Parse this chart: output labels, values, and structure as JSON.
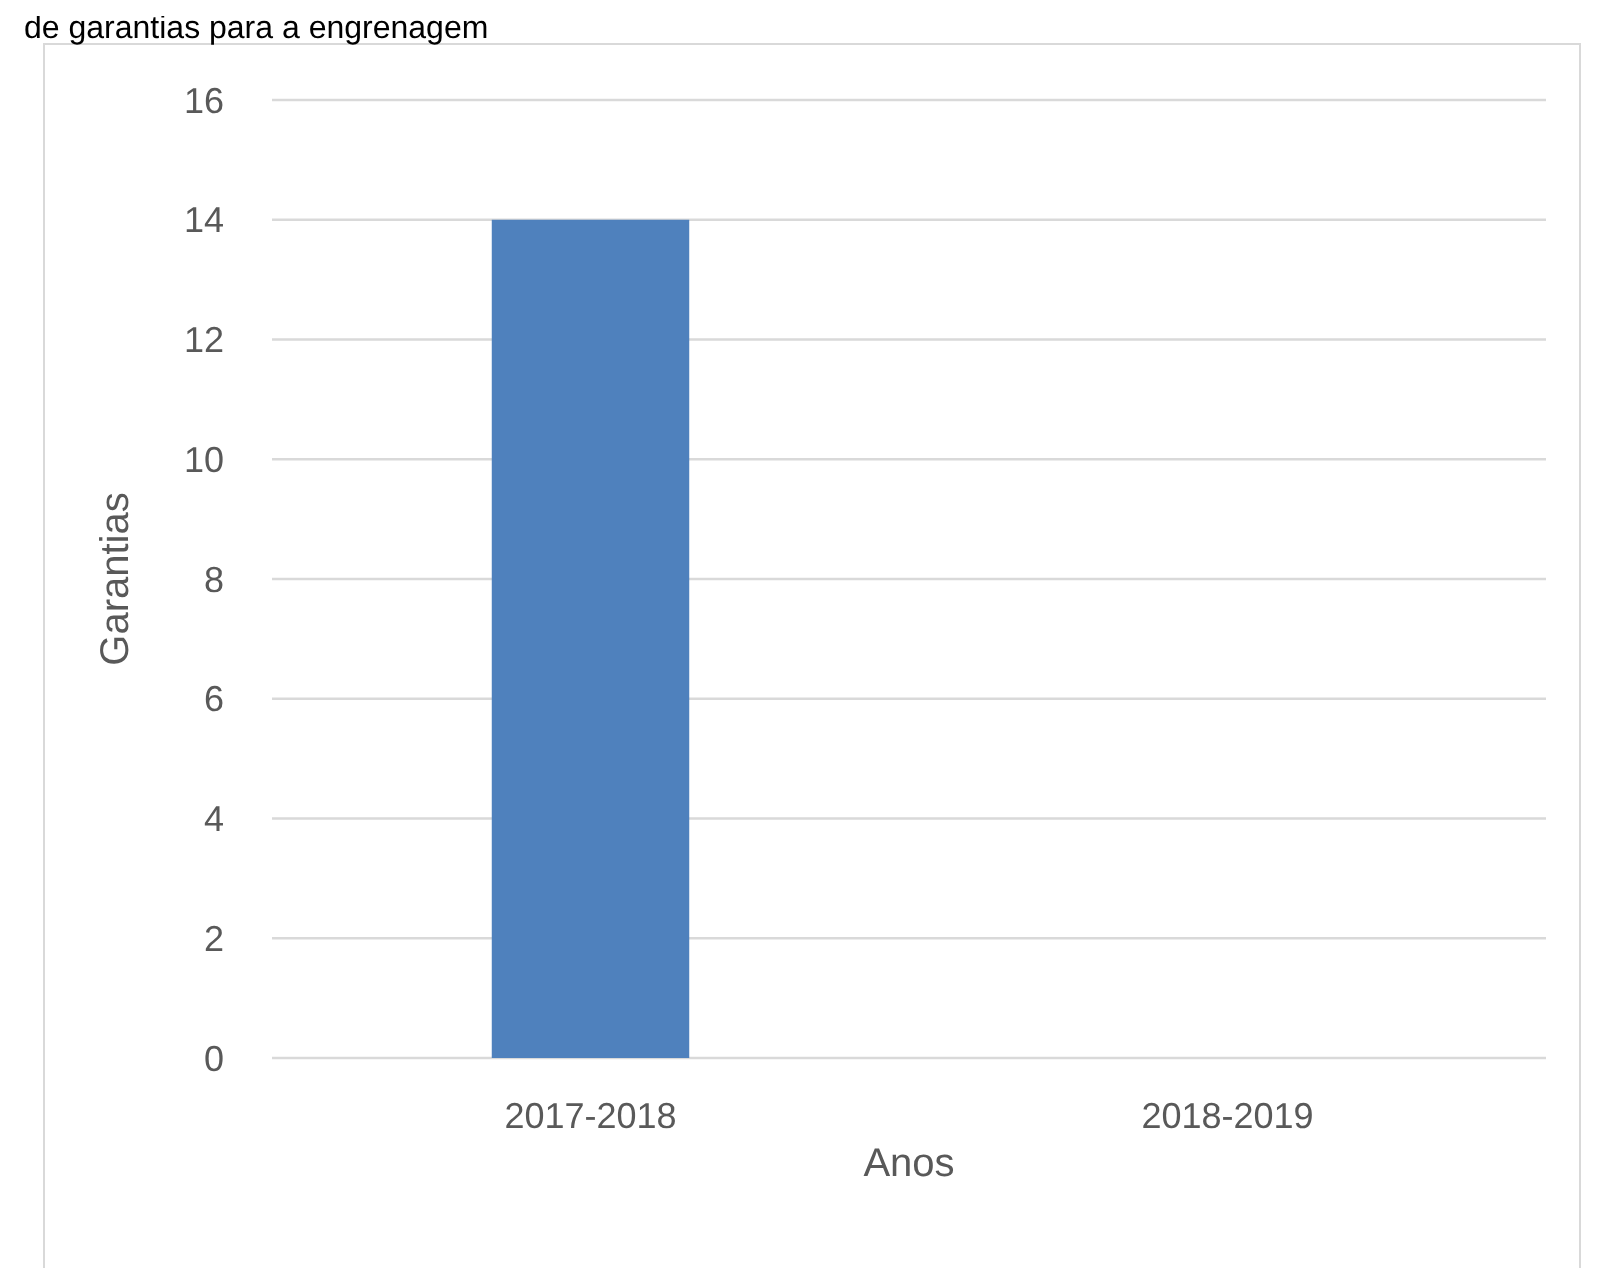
{
  "chart_data": {
    "type": "bar",
    "title": "de garantias para a engrenagem",
    "xlabel": "Anos",
    "ylabel": "Garantias",
    "categories": [
      "2017-2018",
      "2018-2019"
    ],
    "values": [
      14,
      0
    ],
    "color": "#4f81bd",
    "ylim": [
      0,
      16
    ],
    "yticks": [
      0,
      2,
      4,
      6,
      8,
      10,
      12,
      14,
      16
    ],
    "grid": "y"
  }
}
